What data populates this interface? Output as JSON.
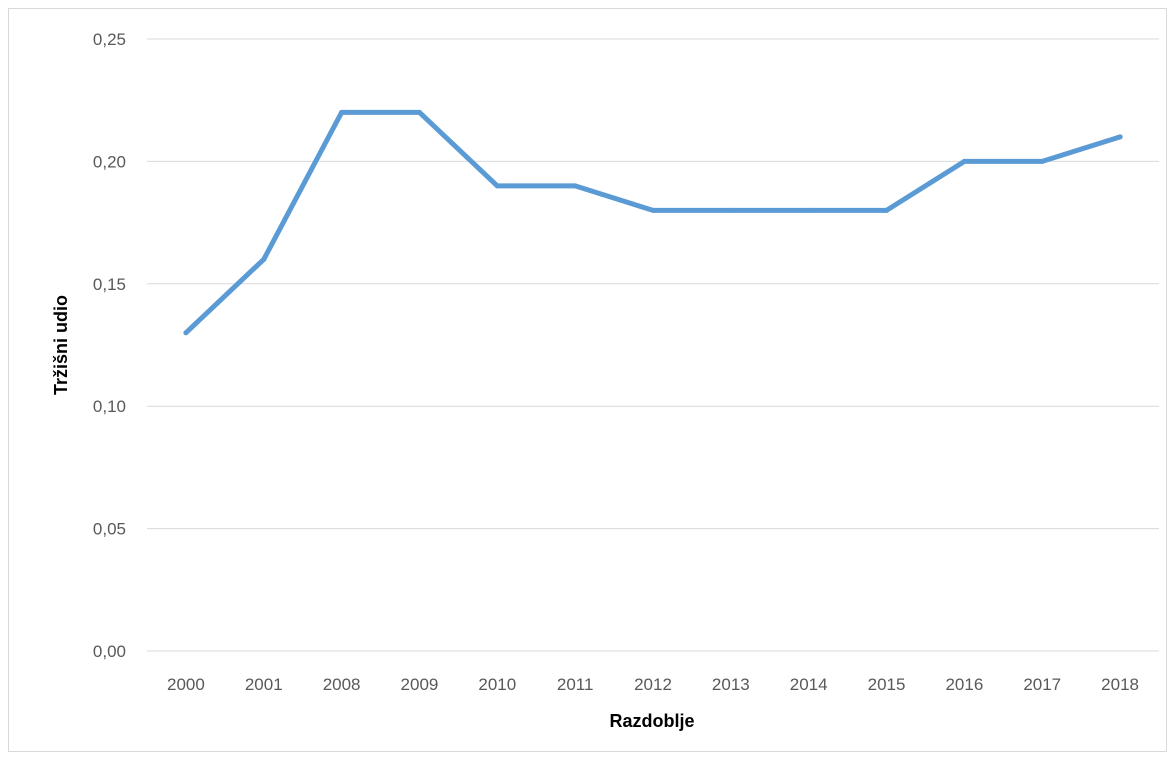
{
  "chart_data": {
    "type": "line",
    "categories": [
      "2000",
      "2001",
      "2008",
      "2009",
      "2010",
      "2011",
      "2012",
      "2013",
      "2014",
      "2015",
      "2016",
      "2017",
      "2018"
    ],
    "series": [
      {
        "values": [
          0.13,
          0.16,
          0.22,
          0.22,
          0.19,
          0.19,
          0.18,
          0.18,
          0.18,
          0.18,
          0.2,
          0.2,
          0.21
        ]
      }
    ],
    "xlabel": "Razdoblje",
    "ylabel": "Tržišni udio",
    "ylim": [
      0,
      0.25
    ],
    "yticks": [
      "0,00",
      "0,05",
      "0,10",
      "0,15",
      "0,20",
      "0,25"
    ],
    "grid": true,
    "legend": "none",
    "colors": {
      "line": "#5b9bd5",
      "grid": "#d9d9d9",
      "tick_text": "#595959"
    }
  }
}
